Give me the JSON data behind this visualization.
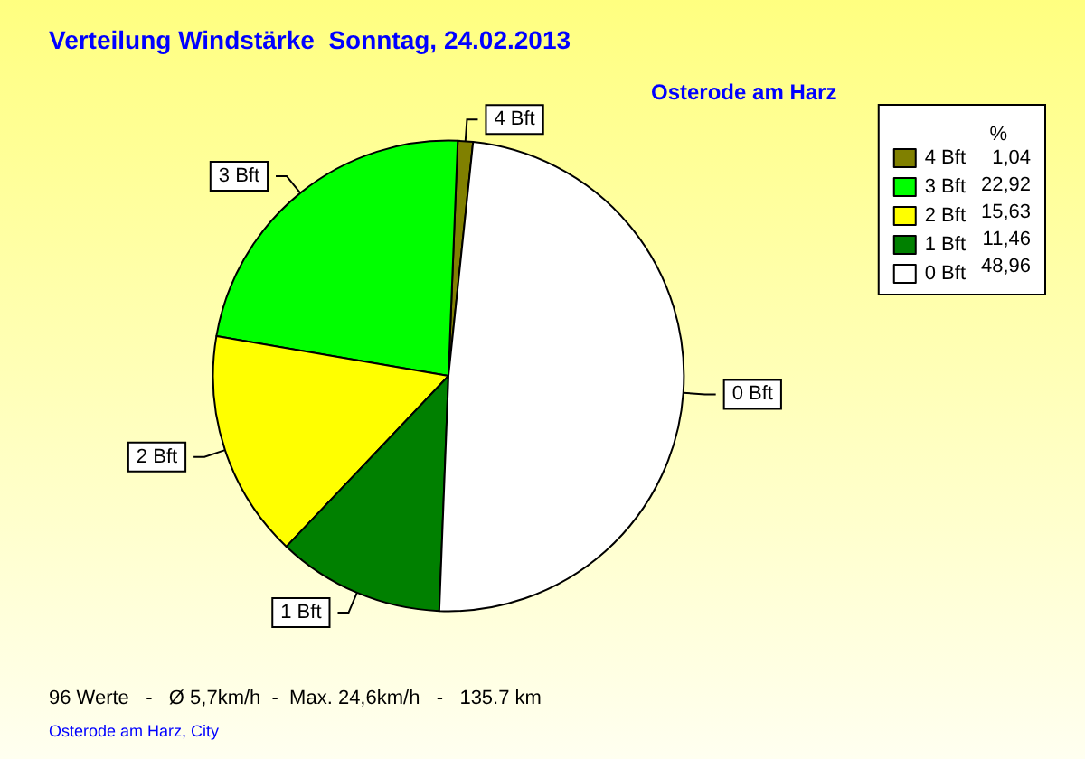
{
  "chart_data": {
    "type": "pie",
    "title": "Verteilung Windstärke  Sonntag, 24.02.2013",
    "subtitle": "Osterode am Harz",
    "legend_title": "%",
    "legend": "top right",
    "categories": [
      "4 Bft",
      "3 Bft",
      "2 Bft",
      "1 Bft",
      "0 Bft"
    ],
    "values": [
      1.04,
      22.92,
      15.63,
      11.46,
      48.96
    ],
    "value_labels": [
      "1,04",
      "22,92",
      "15,63",
      "11,46",
      "48,96"
    ],
    "colors": [
      "#808000",
      "#00ff00",
      "#ffff00",
      "#008000",
      "#ffffff"
    ],
    "annotations": [
      "96 Werte   -   Ø 5,7km/h  -  Max. 24,6km/h   -   135.7 km",
      "Osterode am Harz, City"
    ]
  }
}
